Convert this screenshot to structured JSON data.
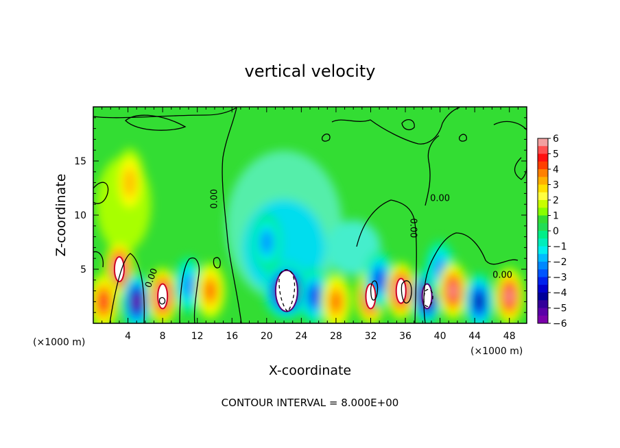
{
  "figure": {
    "title": "vertical velocity",
    "footer": "CONTOUR INTERVAL = 8.000E+00"
  },
  "chart_data": {
    "type": "heatmap",
    "title": "vertical velocity",
    "xlabel": "X-coordinate",
    "ylabel": "Z-coordinate",
    "x_unit_label": "(×1000 m)",
    "xlim": [
      0,
      50
    ],
    "ylim": [
      0,
      20
    ],
    "x_ticks": [
      4,
      8,
      12,
      16,
      20,
      24,
      28,
      32,
      36,
      40,
      44,
      48
    ],
    "y_ticks": [
      5,
      10,
      15
    ],
    "colorbar": {
      "ticks": [
        6,
        5,
        4,
        3,
        2,
        1,
        0,
        -1,
        -2,
        -3,
        -4,
        -5,
        -6
      ],
      "colors": [
        "#f2a0a0",
        "#ff2020",
        "#ff6a00",
        "#ffc000",
        "#ffff00",
        "#a8ff00",
        "#33dd33",
        "#00ee88",
        "#00eeee",
        "#0099ff",
        "#0033ee",
        "#000099",
        "#7a00aa"
      ]
    },
    "contour_labels": [
      {
        "text": "0.00",
        "x": 14.3,
        "y": 11.5,
        "angle": -90
      },
      {
        "text": "0.00",
        "x": 7.0,
        "y": 4.1,
        "angle": -70
      },
      {
        "text": "0.00",
        "x": 40.0,
        "y": 11.3,
        "angle": 0
      },
      {
        "text": "0.00",
        "x": 36.6,
        "y": 8.8,
        "angle": 90
      },
      {
        "text": "0.00",
        "x": 47.2,
        "y": 4.2,
        "angle": 0
      }
    ],
    "features": [
      {
        "x": 3.0,
        "z": 5.0,
        "w": 6.5,
        "kind": "updraft"
      },
      {
        "x": 4.2,
        "z": 13.0,
        "w": 2.5,
        "kind": "updraft"
      },
      {
        "x": 1.2,
        "z": 2.0,
        "w": 5.0,
        "kind": "updraft"
      },
      {
        "x": 5.0,
        "z": 2.0,
        "w": -5.5,
        "kind": "downdraft"
      },
      {
        "x": 8.0,
        "z": 2.5,
        "w": 6.5,
        "kind": "updraft"
      },
      {
        "x": 11.0,
        "z": 3.5,
        "w": -2.5,
        "kind": "downdraft"
      },
      {
        "x": 13.5,
        "z": 3.0,
        "w": 3.5,
        "kind": "updraft"
      },
      {
        "x": 22.3,
        "z": 3.0,
        "w": -8.0,
        "kind": "downdraft"
      },
      {
        "x": 20.0,
        "z": 7.5,
        "w": -3.0,
        "kind": "downdraft"
      },
      {
        "x": 25.5,
        "z": 2.5,
        "w": -4.0,
        "kind": "downdraft"
      },
      {
        "x": 28.0,
        "z": 2.0,
        "w": 4.0,
        "kind": "updraft"
      },
      {
        "x": 32.0,
        "z": 2.5,
        "w": 6.5,
        "kind": "updraft"
      },
      {
        "x": 33.0,
        "z": 4.0,
        "w": -4.0,
        "kind": "downdraft"
      },
      {
        "x": 35.5,
        "z": 3.0,
        "w": 6.5,
        "kind": "updraft"
      },
      {
        "x": 38.5,
        "z": 2.5,
        "w": -6.5,
        "kind": "downdraft"
      },
      {
        "x": 40.0,
        "z": 5.0,
        "w": -3.0,
        "kind": "downdraft"
      },
      {
        "x": 41.5,
        "z": 3.0,
        "w": 6.0,
        "kind": "updraft"
      },
      {
        "x": 44.5,
        "z": 2.0,
        "w": -5.0,
        "kind": "downdraft"
      },
      {
        "x": 48.0,
        "z": 2.5,
        "w": 6.0,
        "kind": "updraft"
      }
    ]
  }
}
